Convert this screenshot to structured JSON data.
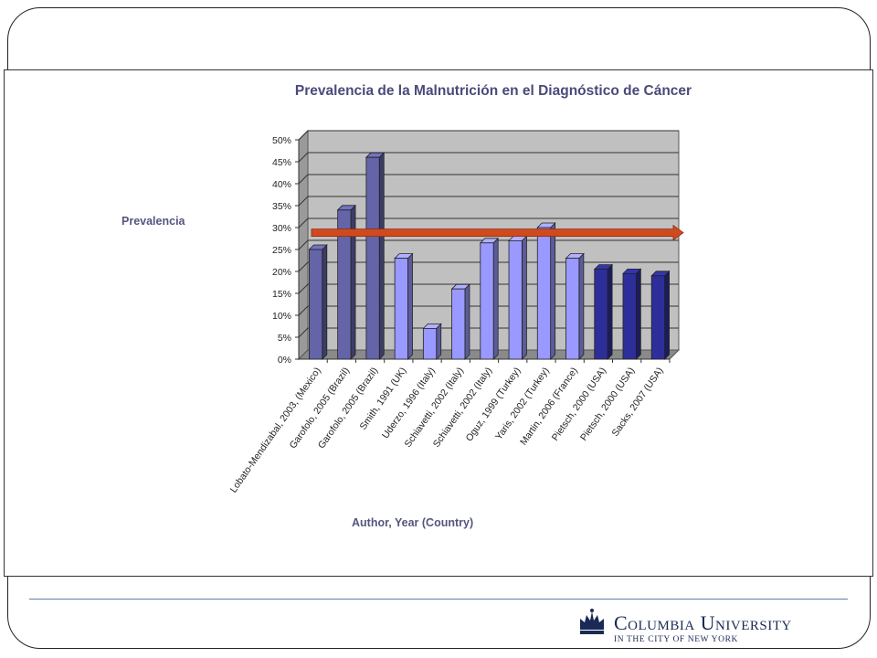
{
  "chart_data": {
    "type": "bar",
    "title": "Prevalencia de la Malnutrición en el Diagnóstico de Cáncer",
    "xlabel": "Author, Year (Country)",
    "ylabel": "Prevalencia",
    "ylim": [
      0,
      50
    ],
    "yticks": [
      "0%",
      "5%",
      "10%",
      "15%",
      "20%",
      "25%",
      "30%",
      "35%",
      "40%",
      "45%",
      "50%"
    ],
    "grid": true,
    "categories": [
      "Lobato-Mendizabal, 2003, (Mexico)",
      "Garofolo, 2005 (Brazil)",
      "Garofolo, 2005 (Brazil)",
      "Smith, 1991 (UK)",
      "Uderzo, 1996 (Italy)",
      "Schiavetti, 2002 (Italy)",
      "Schiavetti, 2002 (Italy)",
      "Oguz, 1999 (Turkey)",
      "Yaris, 2002 (Turkey)",
      "Martin, 2006 (France)",
      "Pietsch, 2000 (USA)",
      "Pietsch, 2000 (USA)",
      "Sacks, 2007 (USA)"
    ],
    "values": [
      25,
      34,
      46,
      23,
      7,
      16,
      26.5,
      27,
      30,
      23,
      20.5,
      19.5,
      19
    ],
    "bar_colors": [
      "#6464a8",
      "#6464a8",
      "#6464a8",
      "#9999ff",
      "#9999ff",
      "#9999ff",
      "#9999ff",
      "#9999ff",
      "#9999ff",
      "#9999ff",
      "#2e2e9a",
      "#2e2e9a",
      "#2e2e9a"
    ],
    "reference_arrow": {
      "value": 28,
      "color": "#d04a1e"
    }
  },
  "logo": {
    "name": "Columbia University",
    "subtitle": "IN THE CITY OF NEW YORK"
  }
}
